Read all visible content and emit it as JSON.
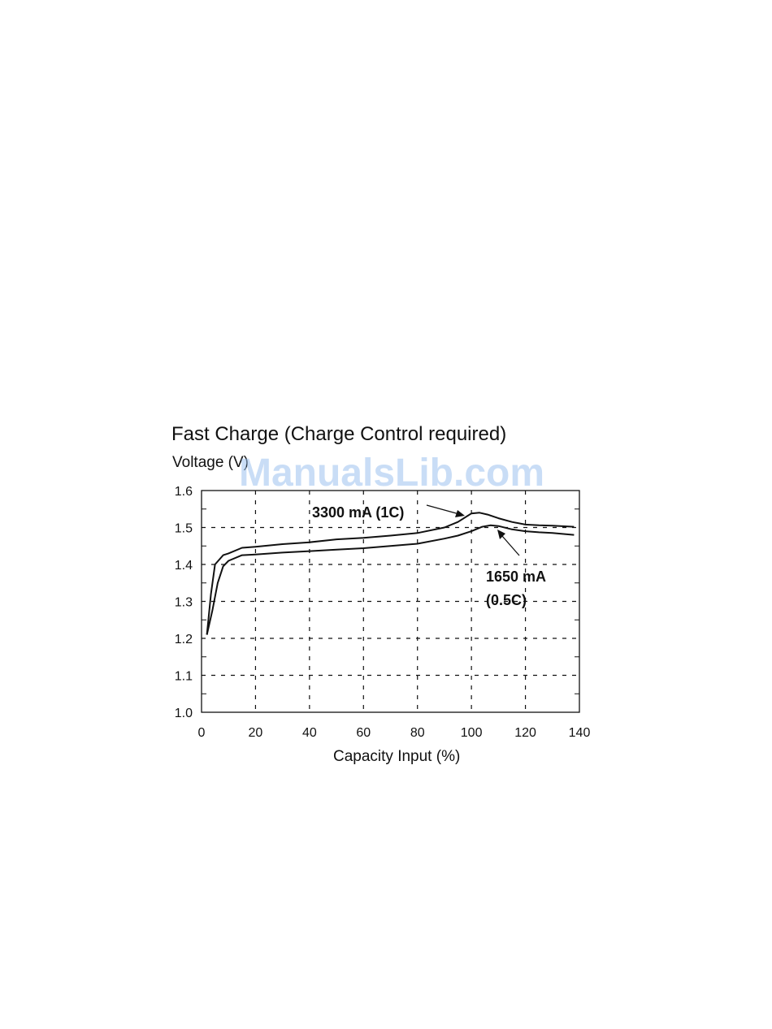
{
  "chart_data": {
    "type": "line",
    "title": "Fast Charge (Charge Control required)",
    "ylabel": "Voltage (V)",
    "xlabel": "Capacity Input  (%)",
    "xlim": [
      0,
      140
    ],
    "ylim": [
      1.0,
      1.6
    ],
    "x_ticks": [
      "0",
      "20",
      "40",
      "60",
      "80",
      "100",
      "120",
      "140"
    ],
    "y_ticks": [
      "1.0",
      "1.1",
      "1.2",
      "1.3",
      "1.4",
      "1.5",
      "1.6"
    ],
    "grid": true,
    "series": [
      {
        "name": "3300 mA (1C)",
        "points": [
          [
            2,
            1.21
          ],
          [
            3.5,
            1.32
          ],
          [
            5,
            1.4
          ],
          [
            8,
            1.425
          ],
          [
            10,
            1.43
          ],
          [
            15,
            1.445
          ],
          [
            20,
            1.448
          ],
          [
            30,
            1.455
          ],
          [
            40,
            1.46
          ],
          [
            50,
            1.468
          ],
          [
            60,
            1.472
          ],
          [
            70,
            1.478
          ],
          [
            80,
            1.485
          ],
          [
            90,
            1.5
          ],
          [
            95,
            1.515
          ],
          [
            100,
            1.538
          ],
          [
            103,
            1.54
          ],
          [
            106,
            1.535
          ],
          [
            110,
            1.525
          ],
          [
            115,
            1.515
          ],
          [
            120,
            1.508
          ],
          [
            125,
            1.506
          ],
          [
            130,
            1.505
          ],
          [
            135,
            1.503
          ],
          [
            138,
            1.502
          ]
        ]
      },
      {
        "name": "1650 mA (0.5C)",
        "points": [
          [
            2,
            1.21
          ],
          [
            4,
            1.275
          ],
          [
            6,
            1.35
          ],
          [
            8,
            1.395
          ],
          [
            10,
            1.41
          ],
          [
            15,
            1.425
          ],
          [
            20,
            1.427
          ],
          [
            30,
            1.432
          ],
          [
            40,
            1.436
          ],
          [
            50,
            1.44
          ],
          [
            60,
            1.444
          ],
          [
            70,
            1.45
          ],
          [
            80,
            1.456
          ],
          [
            90,
            1.47
          ],
          [
            95,
            1.478
          ],
          [
            100,
            1.49
          ],
          [
            104,
            1.502
          ],
          [
            107,
            1.506
          ],
          [
            110,
            1.504
          ],
          [
            115,
            1.495
          ],
          [
            120,
            1.49
          ],
          [
            125,
            1.487
          ],
          [
            130,
            1.485
          ],
          [
            135,
            1.482
          ],
          [
            138,
            1.48
          ]
        ]
      }
    ],
    "annotations": [
      {
        "text": "3300 mA (1C)",
        "target": [
          99,
          1.538
        ]
      },
      {
        "text": "1650 mA",
        "target": [
          107,
          1.506
        ]
      },
      {
        "text": "(0.5C)",
        "target": null
      }
    ]
  },
  "watermark": "ManualsLib.com"
}
